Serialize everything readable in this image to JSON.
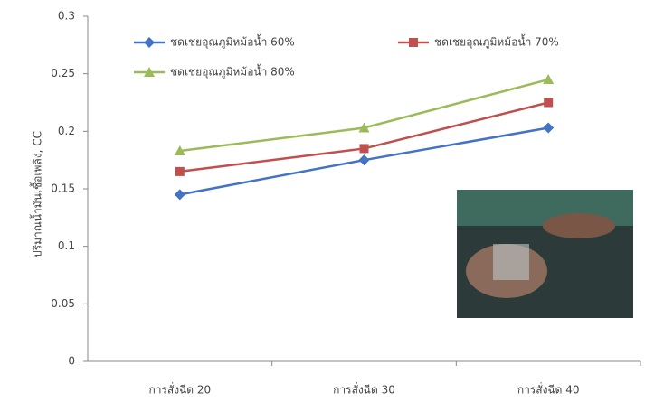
{
  "chart_data": {
    "type": "line",
    "y_label": "ปริมาณน้ำมันเชื้อเพลิง, CC",
    "categories": [
      "การสั่งฉีด 20",
      "การสั่งฉีด 30",
      "การสั่งฉีด 40"
    ],
    "series": [
      {
        "name": "ชดเชยอุณภูมิหม้อน้ำ 60%",
        "color": "#4472c4",
        "marker": "diamond",
        "values": [
          0.145,
          0.175,
          0.203
        ]
      },
      {
        "name": "ชดเชยอุณภูมิหม้อน้ำ 70%",
        "color": "#c0504d",
        "marker": "square",
        "values": [
          0.165,
          0.185,
          0.225
        ]
      },
      {
        "name": "ชดเชยอุณภูมิหม้อน้ำ 80%",
        "color": "#9bbb59",
        "marker": "triangle",
        "values": [
          0.183,
          0.203,
          0.245
        ]
      }
    ],
    "ylim": [
      0,
      0.3
    ],
    "yticks": [
      0,
      0.05,
      0.1,
      0.15,
      0.2,
      0.25,
      0.3
    ],
    "grid": false
  }
}
